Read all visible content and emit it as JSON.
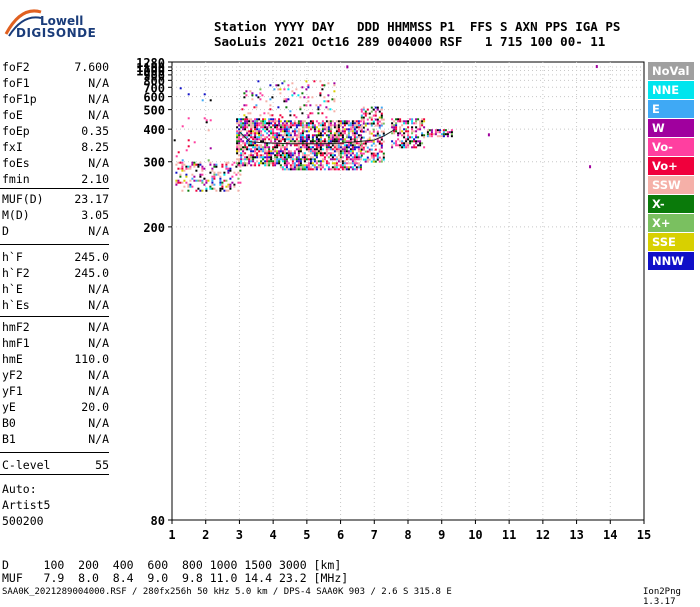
{
  "logo": {
    "line1": "Lowell",
    "line2": "DIGISONDE"
  },
  "header": {
    "line1": "Station YYYY DAY   DDD HHMMSS P1  FFS S AXN PPS IGA PS",
    "line2": "SaoLuis 2021 Oct16 289 004000 RSF   1 715 100 00- 11"
  },
  "params": [
    {
      "name": "foF2",
      "value": "7.600"
    },
    {
      "name": "foF1",
      "value": "N/A"
    },
    {
      "name": "foF1p",
      "value": "N/A"
    },
    {
      "name": "foE",
      "value": "N/A"
    },
    {
      "name": "foEp",
      "value": "0.35"
    },
    {
      "name": "fxI",
      "value": "8.25"
    },
    {
      "name": "foEs",
      "value": "N/A"
    },
    {
      "name": "fmin",
      "value": "2.10"
    },
    {
      "name": "MUF(D)",
      "value": "23.17"
    },
    {
      "name": "M(D)",
      "value": "3.05"
    },
    {
      "name": "D",
      "value": "N/A"
    },
    {
      "name": "h`F",
      "value": "245.0"
    },
    {
      "name": "h`F2",
      "value": "245.0"
    },
    {
      "name": "h`E",
      "value": "N/A"
    },
    {
      "name": "h`Es",
      "value": "N/A"
    },
    {
      "name": "hmF2",
      "value": "N/A"
    },
    {
      "name": "hmF1",
      "value": "N/A"
    },
    {
      "name": "hmE",
      "value": "110.0"
    },
    {
      "name": "yF2",
      "value": "N/A"
    },
    {
      "name": "yF1",
      "value": "N/A"
    },
    {
      "name": "yE",
      "value": "20.0"
    },
    {
      "name": "B0",
      "value": "N/A"
    },
    {
      "name": "B1",
      "value": "N/A"
    },
    {
      "name": "C-level",
      "value": "55"
    }
  ],
  "autoscale": {
    "line1": "Auto:",
    "line2": "Artist5",
    "line3": "500200"
  },
  "legend": [
    {
      "label": "NoVal",
      "bg": "#a0a0a0",
      "fg": "#ffffff"
    },
    {
      "label": "NNE",
      "bg": "#00e5ee",
      "fg": "#ffffff"
    },
    {
      "label": "E",
      "bg": "#3fa9f5",
      "fg": "#ffffff"
    },
    {
      "label": "W",
      "bg": "#a0009e",
      "fg": "#ffffff"
    },
    {
      "label": "Vo-",
      "bg": "#ff3fa0",
      "fg": "#ffffff"
    },
    {
      "label": "Vo+",
      "bg": "#f0003c",
      "fg": "#ffffff"
    },
    {
      "label": "SSW",
      "bg": "#f5b0a8",
      "fg": "#ffffff"
    },
    {
      "label": "X-",
      "bg": "#0a7a0a",
      "fg": "#ffffff"
    },
    {
      "label": "X+",
      "bg": "#7ac060",
      "fg": "#ffffff"
    },
    {
      "label": "SSE",
      "bg": "#d8d000",
      "fg": "#ffffff"
    },
    {
      "label": "NNW",
      "bg": "#1010c8",
      "fg": "#ffffff"
    }
  ],
  "dmuf": {
    "d_line": "D     100  200  400  600  800 1000 1500 3000 [km]",
    "muf_line": "MUF   7.9  8.0  8.4  9.0  9.8 11.0 14.4 23.2 [MHz]"
  },
  "footer": "SAA0K_2021289004000.RSF / 280fx256h 50 kHz 5.0 km / DPS-4 SAA0K 903 / 2.6 S 315.8 E",
  "version": "Ion2Png 1.3.17",
  "chart_data": {
    "type": "scatter",
    "x_ticks": [
      "1",
      "2",
      "3",
      "4",
      "5",
      "6",
      "7",
      "8",
      "9",
      "10",
      "11",
      "12",
      "13",
      "14",
      "15"
    ],
    "y_ticks": [
      "80",
      "200",
      "300",
      "400",
      "500",
      "600",
      "700",
      "800",
      "900",
      "1000",
      "1100",
      "1280"
    ],
    "xlim": [
      1,
      15
    ],
    "ylim": [
      80,
      1280
    ],
    "y_scale": "reciprocal",
    "grid": true,
    "legend_position": "right",
    "trace_virtual_height_curve": {
      "x": [
        3.0,
        3.3,
        3.6,
        4.0,
        4.5,
        5.0,
        5.5,
        6.0,
        6.5,
        7.0,
        7.3,
        7.6
      ],
      "y": [
        390,
        355,
        352,
        350,
        348,
        348,
        348,
        350,
        355,
        360,
        375,
        398
      ]
    },
    "echo_clusters": [
      {
        "x_range": [
          1.1,
          3.0
        ],
        "y_range": [
          245,
          300
        ],
        "density": 0.35
      },
      {
        "x_range": [
          2.9,
          4.2
        ],
        "y_range": [
          290,
          450
        ],
        "density": 0.75
      },
      {
        "x_range": [
          4.2,
          6.6
        ],
        "y_range": [
          285,
          440
        ],
        "density": 0.75
      },
      {
        "x_range": [
          3.0,
          5.8
        ],
        "y_range": [
          450,
          800
        ],
        "density": 0.12
      },
      {
        "x_range": [
          6.6,
          7.3
        ],
        "y_range": [
          300,
          520
        ],
        "density": 0.5
      },
      {
        "x_range": [
          7.5,
          8.5
        ],
        "y_range": [
          340,
          450
        ],
        "density": 0.55
      },
      {
        "x_range": [
          8.5,
          9.3
        ],
        "y_range": [
          375,
          400
        ],
        "density": 0.6
      },
      {
        "x_range": [
          1.05,
          2.2
        ],
        "y_range": [
          300,
          700
        ],
        "density": 0.02
      }
    ],
    "isolated_echoes": [
      {
        "x": 13.4,
        "y": 290
      },
      {
        "x": 13.6,
        "y": 1130
      },
      {
        "x": 6.2,
        "y": 1120
      },
      {
        "x": 10.4,
        "y": 380
      }
    ]
  }
}
